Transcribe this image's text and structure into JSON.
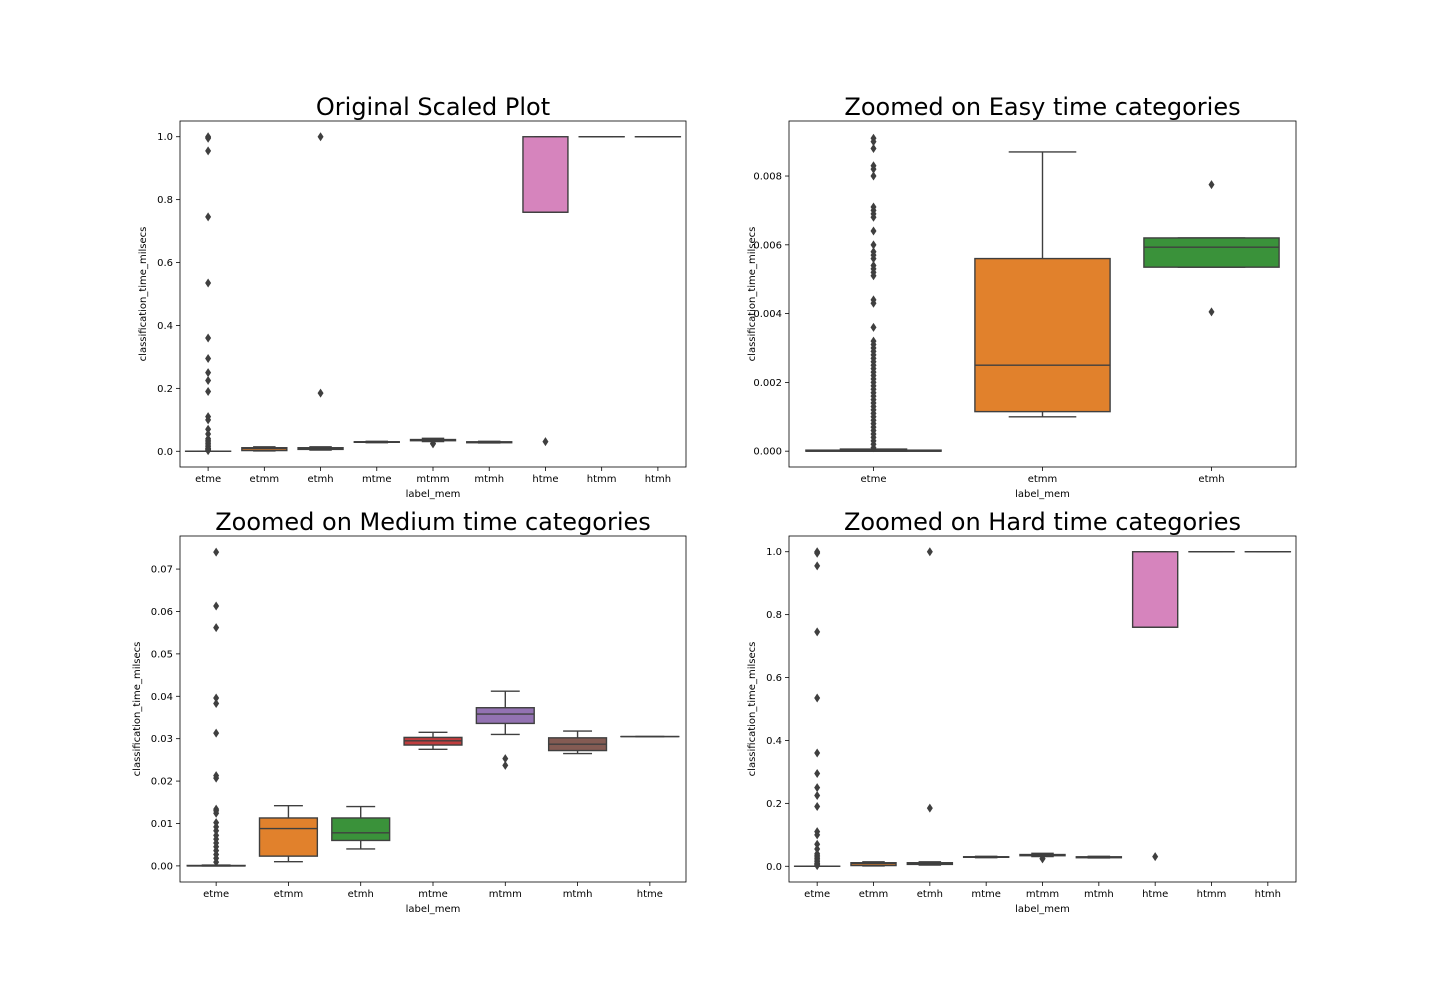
{
  "chart_data": [
    {
      "type": "box",
      "title": "Original Scaled Plot",
      "xlabel": "label_mem",
      "ylabel": "classification_time_milsecs",
      "ylim": [
        -0.05,
        1.05
      ],
      "yticks": [
        0.0,
        0.2,
        0.4,
        0.6,
        0.8,
        1.0
      ],
      "ytick_labels": [
        "0.0",
        "0.2",
        "0.4",
        "0.6",
        "0.8",
        "1.0"
      ],
      "categories": [
        "etme",
        "etmm",
        "etmh",
        "mtme",
        "mtmm",
        "mtmh",
        "htme",
        "htmm",
        "htmh"
      ],
      "boxes": [
        {
          "q1": 0.0,
          "median": 0.0,
          "q3": 0.0001,
          "whislo": 0.0,
          "whishi": 0.0002,
          "fliers": [
            1.0,
            0.998,
            0.995,
            0.955,
            0.745,
            0.535,
            0.36,
            0.295,
            0.25,
            0.225,
            0.19,
            0.11,
            0.1,
            0.07,
            0.055,
            0.04,
            0.035,
            0.03,
            0.025,
            0.02,
            0.015,
            0.01,
            0.008,
            0.006,
            0.004,
            0.002
          ]
        },
        {
          "q1": 0.0023,
          "median": 0.0088,
          "q3": 0.0113,
          "whislo": 0.001,
          "whishi": 0.0142,
          "fliers": []
        },
        {
          "q1": 0.006,
          "median": 0.0078,
          "q3": 0.0113,
          "whislo": 0.004,
          "whishi": 0.014,
          "fliers": [
            1.0,
            0.185
          ]
        },
        {
          "q1": 0.0285,
          "median": 0.0295,
          "q3": 0.0303,
          "whislo": 0.0275,
          "whishi": 0.0315,
          "fliers": []
        },
        {
          "q1": 0.0336,
          "median": 0.0358,
          "q3": 0.0373,
          "whislo": 0.031,
          "whishi": 0.0412,
          "fliers": [
            0.0253,
            0.0237
          ]
        },
        {
          "q1": 0.0272,
          "median": 0.0287,
          "q3": 0.0302,
          "whislo": 0.0265,
          "whishi": 0.0318,
          "fliers": []
        },
        {
          "q1": 0.76,
          "median": 0.76,
          "q3": 1.0,
          "whislo": 0.76,
          "whishi": 1.0,
          "fliers": [
            0.0305
          ]
        },
        {
          "q1": 1.0,
          "median": 1.0,
          "q3": 1.0,
          "whislo": 1.0,
          "whishi": 1.0,
          "fliers": []
        },
        {
          "q1": 1.0,
          "median": 1.0,
          "q3": 1.0,
          "whislo": 1.0,
          "whishi": 1.0,
          "fliers": []
        }
      ],
      "colors": [
        "#3274a1",
        "#e1812c",
        "#3a923a",
        "#c03d3e",
        "#9372b2",
        "#845b53",
        "#d684bd",
        "#7f7f7f",
        "#a9aa35"
      ]
    },
    {
      "type": "box",
      "title": "Zoomed on Easy time categories",
      "xlabel": "label_mem",
      "ylabel": "classification_time_milsecs",
      "ylim": [
        -0.00046,
        0.0096
      ],
      "yticks": [
        0.0,
        0.002,
        0.004,
        0.006,
        0.008
      ],
      "ytick_labels": [
        "0.000",
        "0.002",
        "0.004",
        "0.006",
        "0.008"
      ],
      "categories": [
        "etme",
        "etmm",
        "etmh"
      ],
      "boxes": [
        {
          "q1": 0.0,
          "median": 0.0,
          "q3": 3e-05,
          "whislo": 0.0,
          "whishi": 6e-05,
          "fliers": [
            0.0091,
            0.009,
            0.0088,
            0.0083,
            0.0082,
            0.008,
            0.0071,
            0.007,
            0.0069,
            0.0068,
            0.0064,
            0.006,
            0.0058,
            0.0057,
            0.0056,
            0.0054,
            0.0053,
            0.0052,
            0.0051,
            0.0044,
            0.0043,
            0.0036,
            0.0032,
            0.0031,
            0.003,
            0.0029,
            0.0028,
            0.0027,
            0.0026,
            0.0025,
            0.0024,
            0.0023,
            0.0022,
            0.0021,
            0.002,
            0.0019,
            0.0018,
            0.0017,
            0.0016,
            0.0015,
            0.0014,
            0.0013,
            0.0012,
            0.0011,
            0.001,
            0.0009,
            0.0008,
            0.0007,
            0.0006,
            0.0005,
            0.0004,
            0.0003,
            0.0002,
            0.0001
          ]
        },
        {
          "q1": 0.00115,
          "median": 0.0025,
          "q3": 0.0056,
          "whislo": 0.001,
          "whishi": 0.0087,
          "fliers": []
        },
        {
          "q1": 0.00535,
          "median": 0.00593,
          "q3": 0.0062,
          "whislo": 0.00535,
          "whishi": 0.0062,
          "fliers": [
            0.00775,
            0.00405
          ]
        }
      ],
      "colors": [
        "#3274a1",
        "#e1812c",
        "#3a923a"
      ]
    },
    {
      "type": "box",
      "title": "Zoomed on Medium time categories",
      "xlabel": "label_mem",
      "ylabel": "classification_time_milsecs",
      "ylim": [
        -0.0038,
        0.0778
      ],
      "yticks": [
        0.0,
        0.01,
        0.02,
        0.03,
        0.04,
        0.05,
        0.06,
        0.07
      ],
      "ytick_labels": [
        "0.00",
        "0.01",
        "0.02",
        "0.03",
        "0.04",
        "0.05",
        "0.06",
        "0.07"
      ],
      "categories": [
        "etme",
        "etmm",
        "etmh",
        "mtme",
        "mtmm",
        "mtmh",
        "htme"
      ],
      "boxes": [
        {
          "q1": 0.0,
          "median": 0.0,
          "q3": 0.0001,
          "whislo": 0.0,
          "whishi": 0.0002,
          "fliers": [
            0.074,
            0.0613,
            0.0562,
            0.0396,
            0.0383,
            0.0313,
            0.0213,
            0.0207,
            0.0134,
            0.013,
            0.0124,
            0.0102,
            0.0092,
            0.0083,
            0.0072,
            0.0063,
            0.0054,
            0.0045,
            0.0036,
            0.0027,
            0.0018,
            0.0009
          ]
        },
        {
          "q1": 0.0023,
          "median": 0.0088,
          "q3": 0.0113,
          "whislo": 0.001,
          "whishi": 0.0142,
          "fliers": []
        },
        {
          "q1": 0.006,
          "median": 0.0078,
          "q3": 0.0113,
          "whislo": 0.004,
          "whishi": 0.014,
          "fliers": []
        },
        {
          "q1": 0.0285,
          "median": 0.0295,
          "q3": 0.0303,
          "whislo": 0.0275,
          "whishi": 0.0315,
          "fliers": []
        },
        {
          "q1": 0.0336,
          "median": 0.0358,
          "q3": 0.0373,
          "whislo": 0.031,
          "whishi": 0.0412,
          "fliers": [
            0.0253,
            0.0237
          ]
        },
        {
          "q1": 0.0272,
          "median": 0.0287,
          "q3": 0.0302,
          "whislo": 0.0265,
          "whishi": 0.0318,
          "fliers": []
        },
        {
          "q1": 0.0305,
          "median": 0.0305,
          "q3": 0.0305,
          "whislo": 0.0305,
          "whishi": 0.0305,
          "fliers": []
        }
      ],
      "colors": [
        "#3274a1",
        "#e1812c",
        "#3a923a",
        "#c03d3e",
        "#9372b2",
        "#845b53",
        "#d684bd"
      ]
    },
    {
      "type": "box",
      "title": "Zoomed on Hard time categories",
      "xlabel": "label_mem",
      "ylabel": "classification_time_milsecs",
      "ylim": [
        -0.05,
        1.05
      ],
      "yticks": [
        0.0,
        0.2,
        0.4,
        0.6,
        0.8,
        1.0
      ],
      "ytick_labels": [
        "0.0",
        "0.2",
        "0.4",
        "0.6",
        "0.8",
        "1.0"
      ],
      "categories": [
        "etme",
        "etmm",
        "etmh",
        "mtme",
        "mtmm",
        "mtmh",
        "htme",
        "htmm",
        "htmh"
      ],
      "boxes": [
        {
          "q1": 0.0,
          "median": 0.0,
          "q3": 0.0001,
          "whislo": 0.0,
          "whishi": 0.0002,
          "fliers": [
            1.0,
            0.998,
            0.995,
            0.955,
            0.745,
            0.535,
            0.36,
            0.295,
            0.25,
            0.225,
            0.19,
            0.11,
            0.1,
            0.07,
            0.055,
            0.04,
            0.035,
            0.03,
            0.025,
            0.02,
            0.015,
            0.01,
            0.008,
            0.006,
            0.004,
            0.002
          ]
        },
        {
          "q1": 0.0023,
          "median": 0.0088,
          "q3": 0.0113,
          "whislo": 0.001,
          "whishi": 0.0142,
          "fliers": []
        },
        {
          "q1": 0.006,
          "median": 0.0078,
          "q3": 0.0113,
          "whislo": 0.004,
          "whishi": 0.014,
          "fliers": [
            1.0,
            0.185
          ]
        },
        {
          "q1": 0.0285,
          "median": 0.0295,
          "q3": 0.0303,
          "whislo": 0.0275,
          "whishi": 0.0315,
          "fliers": []
        },
        {
          "q1": 0.0336,
          "median": 0.0358,
          "q3": 0.0373,
          "whislo": 0.031,
          "whishi": 0.0412,
          "fliers": [
            0.0253,
            0.0237
          ]
        },
        {
          "q1": 0.0272,
          "median": 0.0287,
          "q3": 0.0302,
          "whislo": 0.0265,
          "whishi": 0.0318,
          "fliers": []
        },
        {
          "q1": 0.76,
          "median": 0.76,
          "q3": 1.0,
          "whislo": 0.76,
          "whishi": 1.0,
          "fliers": [
            0.0305
          ]
        },
        {
          "q1": 1.0,
          "median": 1.0,
          "q3": 1.0,
          "whislo": 1.0,
          "whishi": 1.0,
          "fliers": []
        },
        {
          "q1": 1.0,
          "median": 1.0,
          "q3": 1.0,
          "whislo": 1.0,
          "whishi": 1.0,
          "fliers": []
        }
      ],
      "colors": [
        "#3274a1",
        "#e1812c",
        "#3a923a",
        "#c03d3e",
        "#9372b2",
        "#845b53",
        "#d684bd",
        "#7f7f7f",
        "#a9aa35"
      ]
    }
  ]
}
